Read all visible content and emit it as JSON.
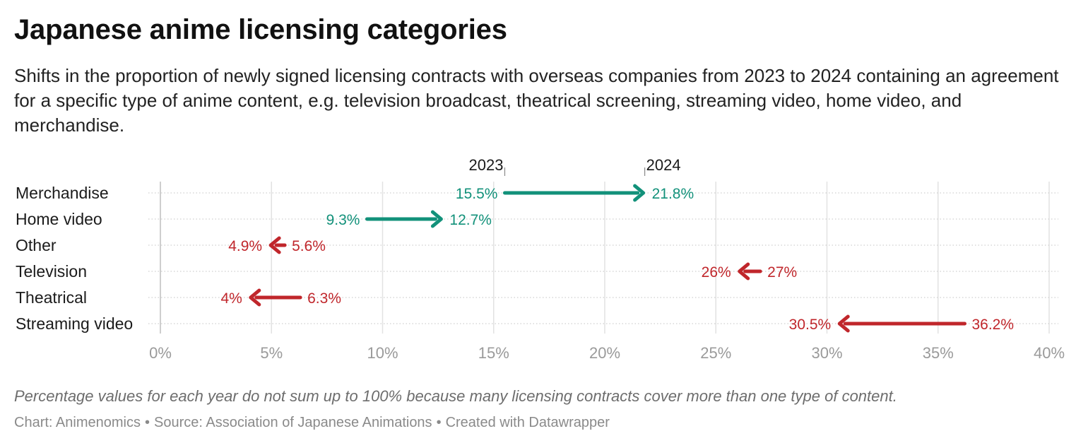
{
  "title": "Japanese anime licensing categories",
  "subtitle": "Shifts in the proportion of newly signed licensing contracts with overseas companies from 2023 to 2024 containing an agreement for a specific type of anime content, e.g. television broadcast, theatrical screening, streaming video, home video, and merchandise.",
  "note": "Percentage values for each year do not sum up to 100% because many licensing contracts cover more than one type of content.",
  "footer": {
    "chart_credit": "Chart: Animenomics",
    "source": "Source: Association of Japanese Animations",
    "tool": "Created with Datawrapper",
    "separator": "•"
  },
  "colors": {
    "increase": "#12917a",
    "decrease": "#c0262b",
    "grid": "#e2e2e2",
    "axis_text": "#9a9a9a"
  },
  "chart_data": {
    "type": "arrow",
    "xlim": [
      0,
      40
    ],
    "x_ticks": [
      0,
      5,
      10,
      15,
      20,
      25,
      30,
      35,
      40
    ],
    "x_tick_labels": [
      "0%",
      "5%",
      "10%",
      "15%",
      "20%",
      "25%",
      "30%",
      "35%",
      "40%"
    ],
    "series_start": "2023",
    "series_end": "2024",
    "legend_row": "Merchandise",
    "rows": [
      {
        "category": "Merchandise",
        "y2023": 15.5,
        "y2024": 21.8,
        "label2023": "15.5%",
        "label2024": "21.8%"
      },
      {
        "category": "Home video",
        "y2023": 9.3,
        "y2024": 12.7,
        "label2023": "9.3%",
        "label2024": "12.7%"
      },
      {
        "category": "Other",
        "y2023": 5.6,
        "y2024": 4.9,
        "label2023": "5.6%",
        "label2024": "4.9%"
      },
      {
        "category": "Television",
        "y2023": 27,
        "y2024": 26,
        "label2023": "27%",
        "label2024": "26%"
      },
      {
        "category": "Theatrical",
        "y2023": 6.3,
        "y2024": 4,
        "label2023": "6.3%",
        "label2024": "4%"
      },
      {
        "category": "Streaming video",
        "y2023": 36.2,
        "y2024": 30.5,
        "label2023": "36.2%",
        "label2024": "30.5%"
      }
    ]
  }
}
